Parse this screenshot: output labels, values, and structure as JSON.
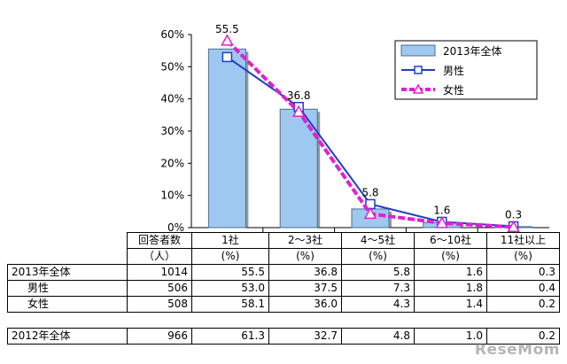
{
  "chart_data": {
    "type": "bar",
    "categories": [
      "1社",
      "2～3社",
      "4～5社",
      "6～10社",
      "11社以上"
    ],
    "y_ticks": [
      "0%",
      "10%",
      "20%",
      "30%",
      "40%",
      "50%",
      "60%"
    ],
    "ylim": [
      0,
      60
    ],
    "legend_position": "top-right",
    "series": [
      {
        "name": "2013年全体",
        "kind": "bar",
        "color": "#9ec8f0",
        "values": [
          55.5,
          36.8,
          5.8,
          1.6,
          0.3
        ]
      },
      {
        "name": "男性",
        "kind": "line",
        "marker": "square",
        "color": "#1f3fbf",
        "values": [
          53.0,
          37.5,
          7.3,
          1.8,
          0.4
        ]
      },
      {
        "name": "女性",
        "kind": "line",
        "marker": "triangle",
        "dashed": true,
        "color": "#e020d0",
        "values": [
          58.1,
          36.0,
          4.3,
          1.4,
          0.2
        ]
      }
    ],
    "data_labels": [
      "55.5",
      "36.8",
      "5.8",
      "1.6",
      "0.3"
    ]
  },
  "table": {
    "header_top": [
      "回答者数",
      "1社",
      "2～3社",
      "4～5社",
      "6～10社",
      "11社以上"
    ],
    "header_bottom": [
      "（人）",
      "(%)",
      "(%)",
      "(%)",
      "(%)",
      "(%)"
    ],
    "rows": [
      {
        "label": "2013年全体",
        "cells": [
          "1014",
          "55.5",
          "36.8",
          "5.8",
          "1.6",
          "0.3"
        ]
      },
      {
        "label": "男性",
        "cells": [
          "506",
          "53.0",
          "37.5",
          "7.3",
          "1.8",
          "0.4"
        ]
      },
      {
        "label": "女性",
        "cells": [
          "508",
          "58.1",
          "36.0",
          "4.3",
          "1.4",
          "0.2"
        ]
      }
    ],
    "row_2012": {
      "label": "2012年全体",
      "cells": [
        "966",
        "61.3",
        "32.7",
        "4.8",
        "1.0",
        "0.2"
      ]
    }
  },
  "watermark": "ReseMom"
}
